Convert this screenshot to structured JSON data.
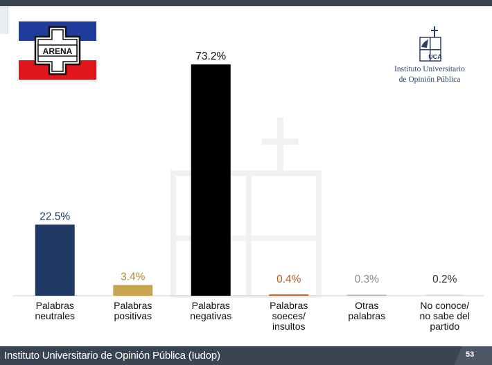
{
  "footer": {
    "institution": "Instituto Universitario de Opinión Pública (Iudop)",
    "page_number": "53"
  },
  "logos": {
    "arena_text": "ARENA",
    "uca_line1": "Instituto Universitario",
    "uca_line2": "de Opinión Pública",
    "uca_mark_text": "UCA"
  },
  "colors": {
    "flag_blue": "#1f3b9c",
    "flag_red": "#e0161c",
    "header": "#3a4350"
  },
  "chart_data": {
    "type": "bar",
    "title": "",
    "xlabel": "",
    "ylabel": "",
    "ylim": [
      0,
      80
    ],
    "categories": [
      [
        "Palabras",
        "neutrales"
      ],
      [
        "Palabras",
        "positivas"
      ],
      [
        "Palabras",
        "negativas"
      ],
      [
        "Palabras",
        "soeces/",
        "insultos"
      ],
      [
        "Otras",
        "palabras"
      ],
      [
        "No conoce/",
        "no sabe del",
        "partido"
      ]
    ],
    "values": [
      22.5,
      3.4,
      73.2,
      0.4,
      0.3,
      0.2
    ],
    "value_labels": [
      "22.5%",
      "3.4%",
      "73.2%",
      "0.4%",
      "0.3%",
      "0.2%"
    ],
    "bar_colors": [
      "#1f3864",
      "#c9a552",
      "#000000",
      "#c0581a",
      "#b4b4b4",
      "#d9d9d9"
    ],
    "label_colors": [
      "#1f3864",
      "#b08a36",
      "#111111",
      "#c0581a",
      "#8a8a8a",
      "#333333"
    ],
    "grid": false,
    "legend": "none"
  }
}
